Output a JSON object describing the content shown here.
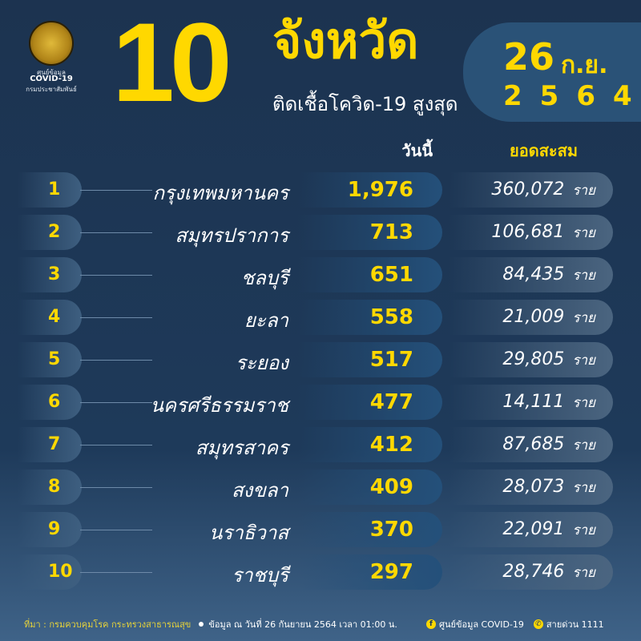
{
  "logo": {
    "line1": "ศูนย์ข้อมูล",
    "line2": "COVID-19",
    "line3": "กรมประชาสัมพันธ์"
  },
  "header": {
    "number": "10",
    "title": "จังหวัด",
    "subtitle": "ติดเชื้อโควิด-19 สูงสุด"
  },
  "date": {
    "day": "26",
    "month": "ก.ย.",
    "year": "2564"
  },
  "columns": {
    "today": "วันนี้",
    "total": "ยอดสะสม"
  },
  "unit": "ราย",
  "rows": [
    {
      "rank": "1",
      "province": "กรุงเทพมหานคร",
      "today": "1,976",
      "total": "360,072"
    },
    {
      "rank": "2",
      "province": "สมุทรปราการ",
      "today": "713",
      "total": "106,681"
    },
    {
      "rank": "3",
      "province": "ชลบุรี",
      "today": "651",
      "total": "84,435"
    },
    {
      "rank": "4",
      "province": "ยะลา",
      "today": "558",
      "total": "21,009"
    },
    {
      "rank": "5",
      "province": "ระยอง",
      "today": "517",
      "total": "29,805"
    },
    {
      "rank": "6",
      "province": "นครศรีธรรมราช",
      "today": "477",
      "total": "14,111"
    },
    {
      "rank": "7",
      "province": "สมุทรสาคร",
      "today": "412",
      "total": "87,685"
    },
    {
      "rank": "8",
      "province": "สงขลา",
      "today": "409",
      "total": "28,073"
    },
    {
      "rank": "9",
      "province": "นราธิวาส",
      "today": "370",
      "total": "22,091"
    },
    {
      "rank": "10",
      "province": "ราชบุรี",
      "today": "297",
      "total": "28,746"
    }
  ],
  "footer": {
    "source": "ที่มา : กรมควบคุมโรค กระทรวงสาธารณสุข",
    "asof": "ข้อมูล ณ วันที่ 26 กันยายน 2564 เวลา 01:00 น.",
    "facebook_icon": "facebook-icon",
    "facebook": "ศูนย์ข้อมูล COVID-19",
    "phone_icon": "phone-icon",
    "hotline": "สายด่วน 1111"
  },
  "colors": {
    "background": "#1c3350",
    "accent": "#ffd800"
  }
}
